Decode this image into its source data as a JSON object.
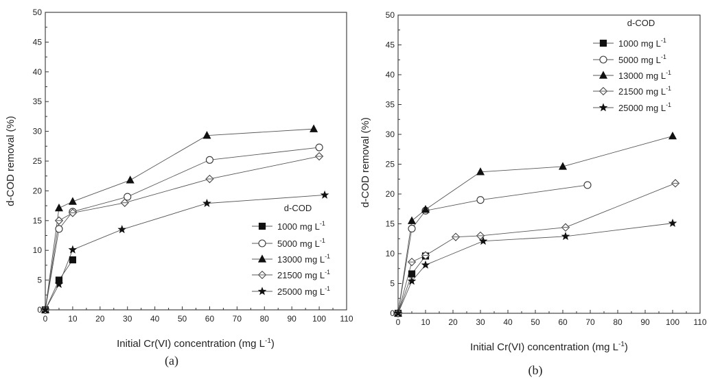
{
  "chart_data": [
    {
      "type": "scatter",
      "panel_label": "(a)",
      "xlabel": "Initial Cr(VI) concentration (mg L",
      "xlabel_sup": "-1",
      "xlabel_end": ")",
      "ylabel": "d-COD removal (%)",
      "xlim": [
        0,
        110
      ],
      "ylim": [
        0,
        50
      ],
      "xticks": [
        0,
        10,
        20,
        30,
        40,
        50,
        60,
        70,
        80,
        90,
        100,
        110
      ],
      "yticks": [
        0,
        5,
        10,
        15,
        20,
        25,
        30,
        35,
        40,
        45,
        50
      ],
      "grid": false,
      "legend": {
        "title": "d-COD",
        "placement": "lower-right",
        "unit": "mg L",
        "unit_sup": "-1"
      },
      "series": [
        {
          "name": "1000",
          "marker": "square-filled",
          "x": [
            0,
            5,
            10
          ],
          "y": [
            0,
            5.0,
            8.4
          ]
        },
        {
          "name": "5000",
          "marker": "circle-open",
          "x": [
            0,
            5,
            10,
            30,
            60,
            100
          ],
          "y": [
            0,
            13.6,
            16.5,
            19.0,
            25.2,
            27.3
          ]
        },
        {
          "name": "13000",
          "marker": "triangle-filled",
          "x": [
            0,
            5,
            10,
            31,
            59,
            98
          ],
          "y": [
            0,
            17.1,
            18.2,
            21.8,
            29.3,
            30.4
          ]
        },
        {
          "name": "21500",
          "marker": "diamond-open",
          "x": [
            0,
            5,
            10,
            29,
            60,
            100
          ],
          "y": [
            0,
            15.0,
            16.3,
            18.0,
            22.0,
            25.8
          ]
        },
        {
          "name": "25000",
          "marker": "star-filled",
          "x": [
            0,
            5,
            10,
            28,
            59,
            102
          ],
          "y": [
            0,
            4.3,
            10.1,
            13.5,
            17.9,
            19.3
          ]
        }
      ]
    },
    {
      "type": "scatter",
      "panel_label": "(b)",
      "xlabel": "Initial Cr(VI) concentration (mg L",
      "xlabel_sup": "-1",
      "xlabel_end": ")",
      "ylabel": "d-COD removal (%)",
      "xlim": [
        0,
        110
      ],
      "ylim": [
        0,
        50
      ],
      "xticks": [
        0,
        10,
        20,
        30,
        40,
        50,
        60,
        70,
        80,
        90,
        100,
        110
      ],
      "yticks": [
        0,
        5,
        10,
        15,
        20,
        25,
        30,
        35,
        40,
        45,
        50
      ],
      "grid": false,
      "legend": {
        "title": "d-COD",
        "placement": "upper-right",
        "unit": "mg L",
        "unit_sup": "-1"
      },
      "series": [
        {
          "name": "1000",
          "marker": "square-filled",
          "x": [
            0,
            5,
            10
          ],
          "y": [
            0,
            6.6,
            9.6
          ]
        },
        {
          "name": "5000",
          "marker": "circle-open",
          "x": [
            0,
            5,
            10,
            30,
            69
          ],
          "y": [
            0,
            14.2,
            17.2,
            19.0,
            21.5
          ]
        },
        {
          "name": "13000",
          "marker": "triangle-filled",
          "x": [
            0,
            5,
            10,
            30,
            60,
            100
          ],
          "y": [
            0,
            15.5,
            17.4,
            23.7,
            24.6,
            29.7
          ]
        },
        {
          "name": "21500",
          "marker": "diamond-open",
          "x": [
            0,
            5,
            10,
            21,
            30,
            61,
            101
          ],
          "y": [
            0,
            8.6,
            9.7,
            12.8,
            13.0,
            14.4,
            21.8
          ]
        },
        {
          "name": "25000",
          "marker": "star-filled",
          "x": [
            0,
            5,
            10,
            31,
            61,
            100
          ],
          "y": [
            0,
            5.4,
            8.1,
            12.1,
            12.9,
            15.1
          ]
        }
      ]
    }
  ]
}
